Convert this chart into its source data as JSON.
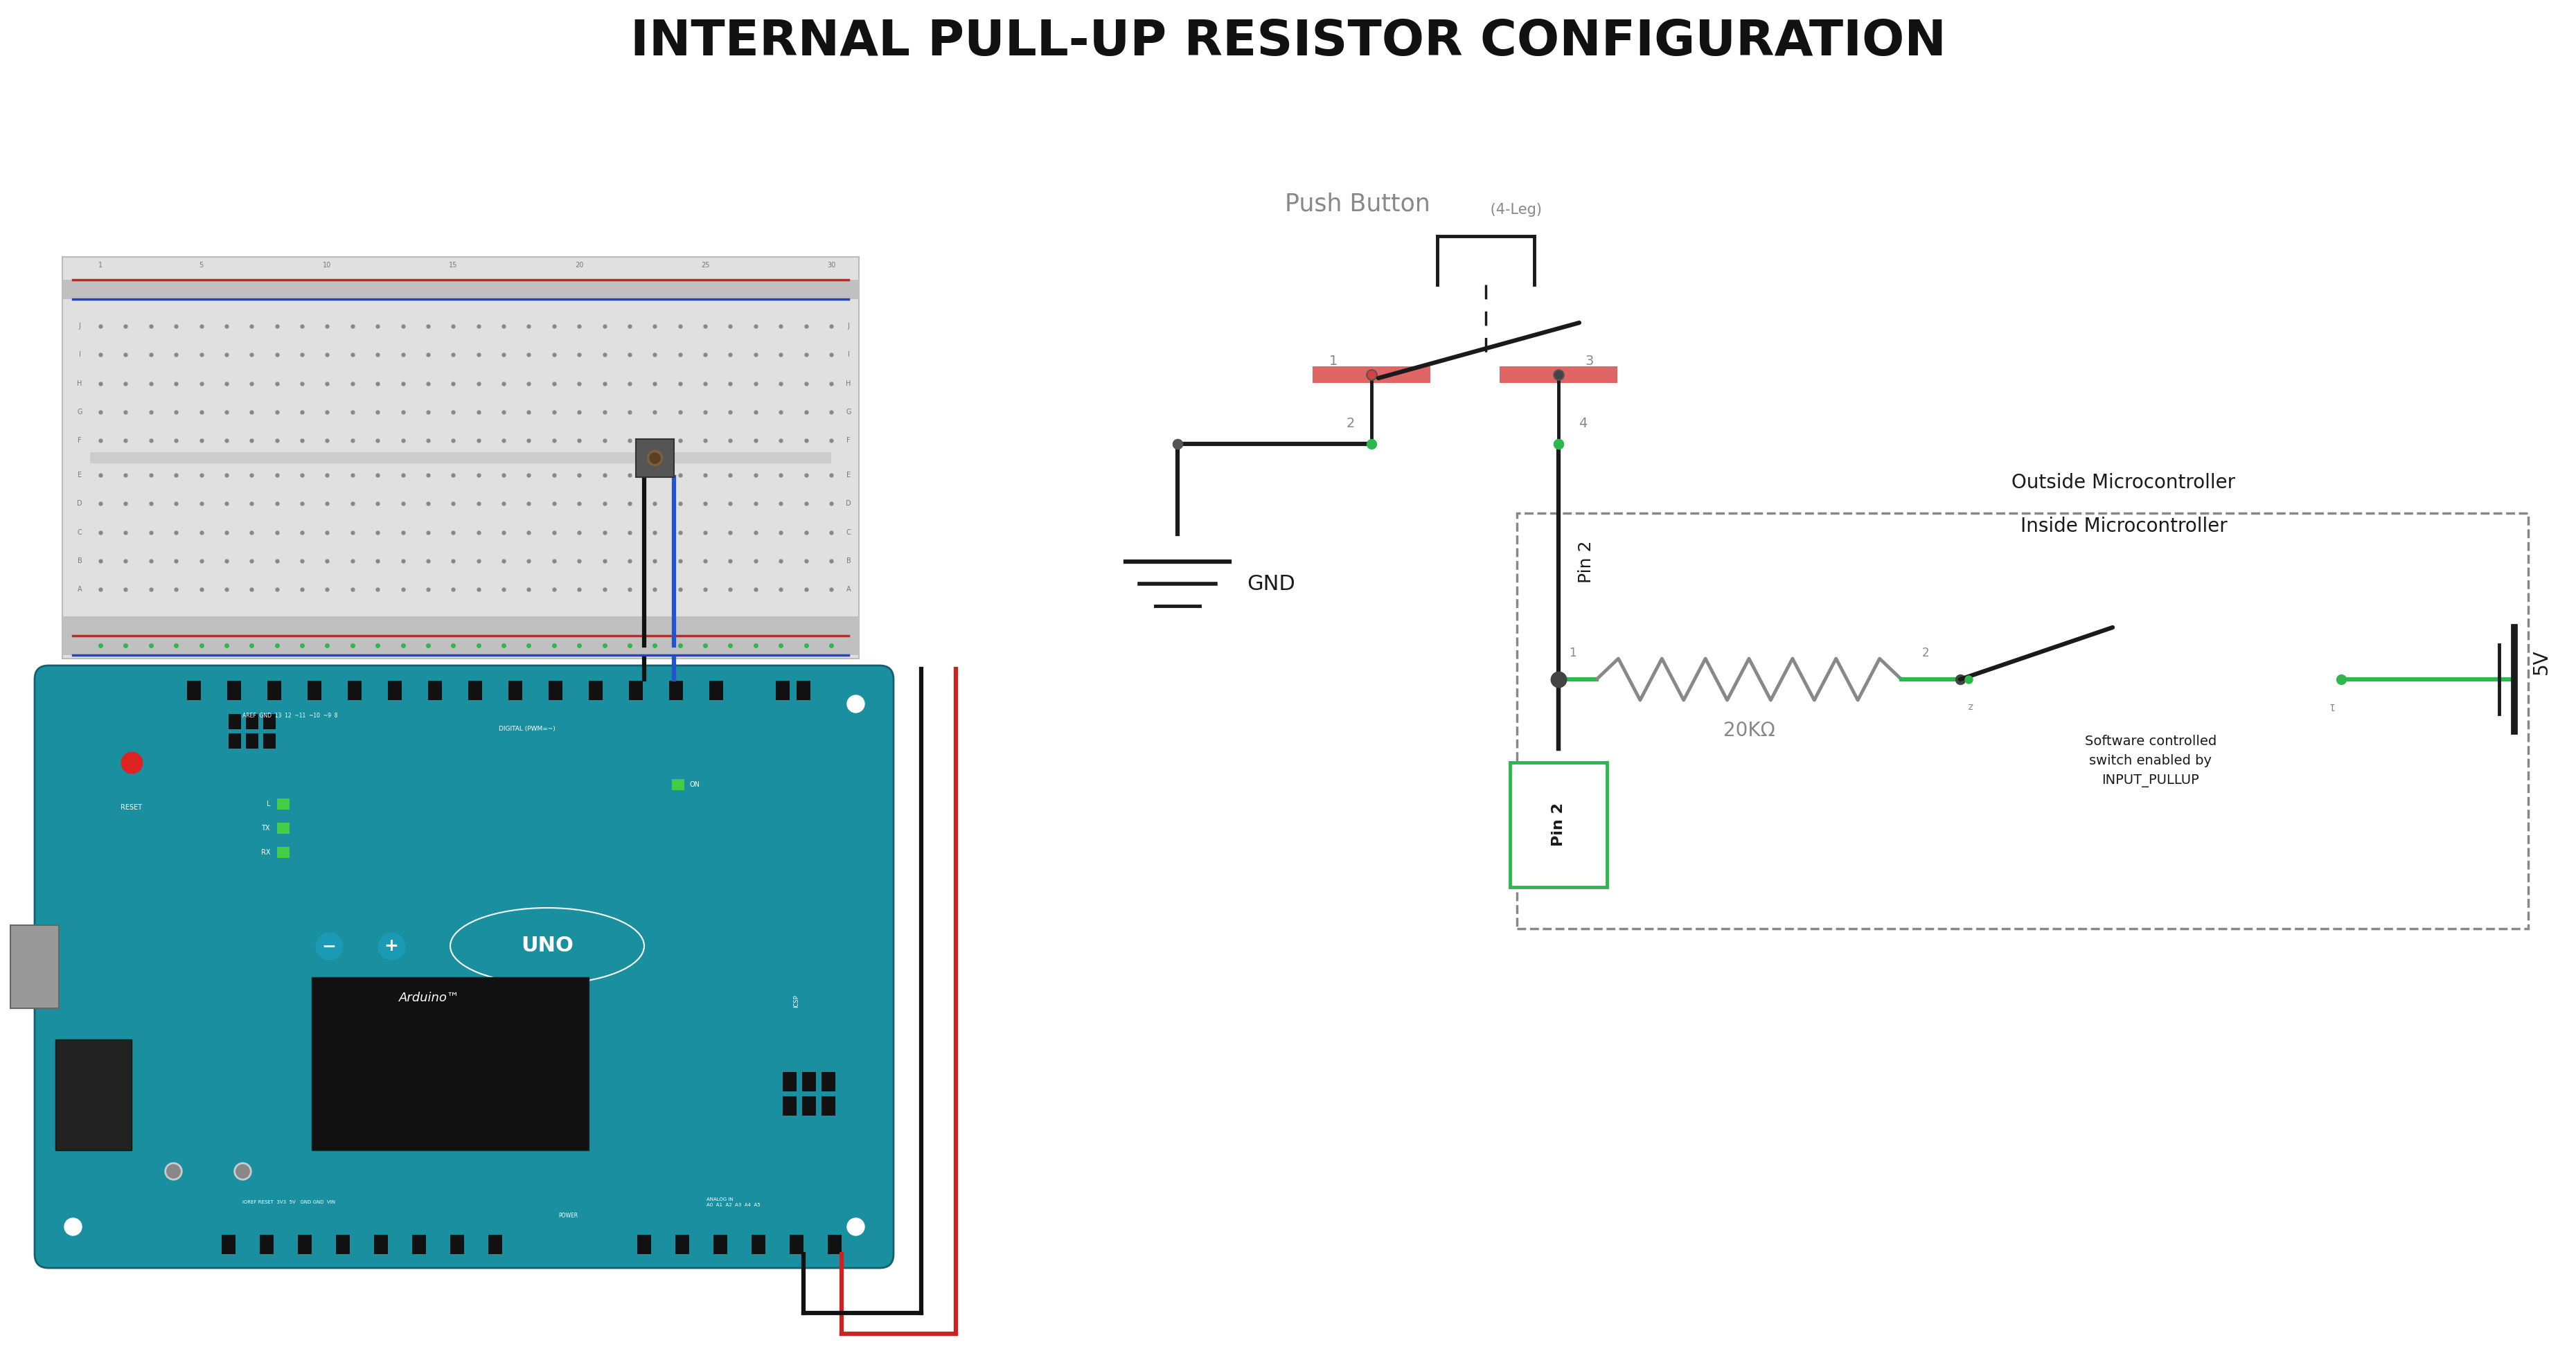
{
  "title": "INTERNAL PULL-UP RESISTOR CONFIGURATION",
  "title_fontsize": 52,
  "bg_color": "#ffffff",
  "schematic": {
    "push_button_label": "Push Button",
    "push_button_sub": " (4-Leg)",
    "outside_mc_label": "Outside Microcontroller",
    "inside_mc_label": "Inside Microcontroller",
    "resistor_label": "20KΩ",
    "gnd_label": "GND",
    "pin2_label": "Pin 2",
    "vcc_label": "5V",
    "sw_label": "Software controlled\nswitch enabled by\nINPUT_PULLUP",
    "green": "#2db84d",
    "red": "#d94040",
    "dark": "#1a1a1a",
    "lgray": "#888888",
    "teal": "#1a8fa0"
  }
}
